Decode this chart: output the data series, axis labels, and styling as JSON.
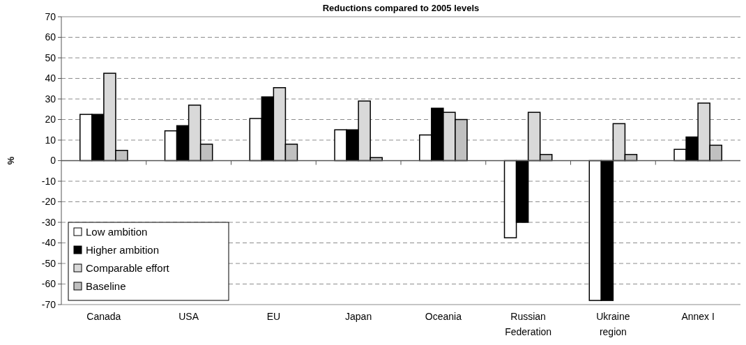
{
  "chart_data": {
    "type": "bar",
    "title": "Reductions compared to 2005 levels",
    "ylabel": "%",
    "categories": [
      "Canada",
      "USA",
      "EU",
      "Japan",
      "Oceania",
      "Russian Federation",
      "Ukraine region",
      "Annex I"
    ],
    "series": [
      {
        "name": "Low ambition",
        "color": "#ffffff",
        "values": [
          22.5,
          14.5,
          20.5,
          15,
          12.5,
          -37.5,
          -68,
          5.5
        ]
      },
      {
        "name": "Higher ambition",
        "color": "#000000",
        "values": [
          22.5,
          17,
          31,
          15,
          25.5,
          -30,
          -68,
          11.5
        ]
      },
      {
        "name": "Comparable effort",
        "color": "#d9d9d9",
        "values": [
          42.5,
          27,
          35.5,
          29,
          23.5,
          23.5,
          18,
          28
        ]
      },
      {
        "name": "Baseline",
        "color": "#c0c0c0",
        "values": [
          5,
          8,
          8,
          1.5,
          20,
          3,
          3,
          7.5
        ]
      }
    ],
    "ylim": [
      -70,
      70
    ],
    "yticks": [
      -70,
      -60,
      -50,
      -40,
      -30,
      -20,
      -10,
      0,
      10,
      20,
      30,
      40,
      50,
      60,
      70
    ],
    "grid": "y",
    "legend": "bottom left"
  }
}
